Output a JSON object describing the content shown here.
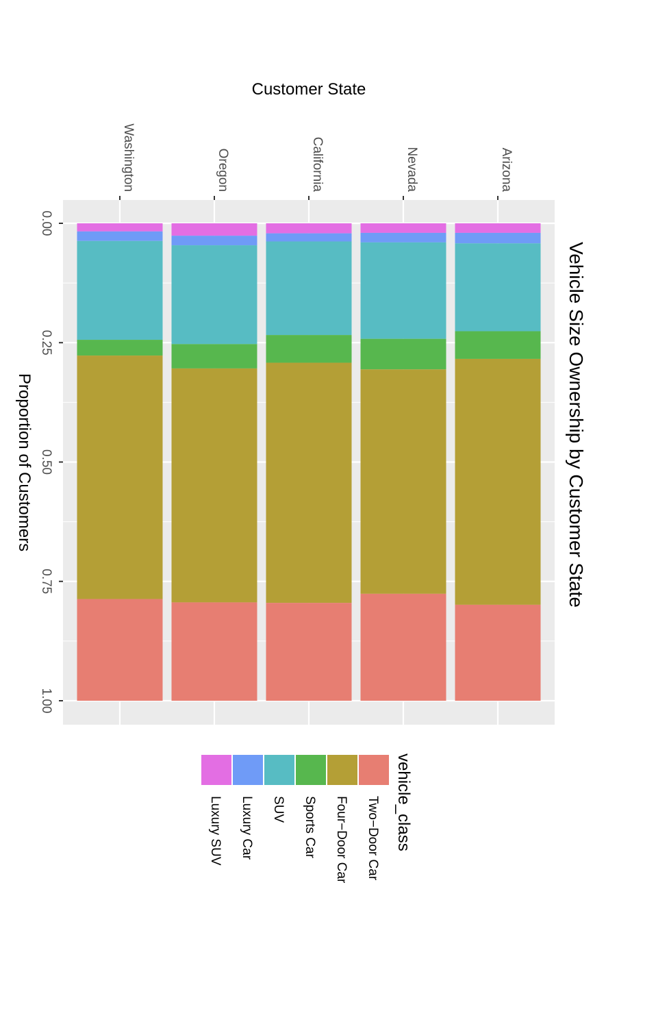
{
  "chart_data": {
    "type": "bar",
    "orientation": "stacked-proportion",
    "title": "Vehicle Size Ownership by Customer State",
    "xlabel": "Customer State",
    "ylabel": "Proportion of Customers",
    "categories": [
      "Washington",
      "Oregon",
      "California",
      "Nevada",
      "Arizona"
    ],
    "ylim": [
      0,
      1
    ],
    "yticks": [
      "0.00",
      "0.25",
      "0.50",
      "0.75",
      "1.00"
    ],
    "grid": true,
    "legend_position": "bottom",
    "legend_title": "vehicle_class",
    "series": [
      {
        "name": "Luxury SUV",
        "color": "#E36EE3",
        "values": [
          0.017,
          0.026,
          0.021,
          0.02,
          0.02
        ]
      },
      {
        "name": "Luxury Car",
        "color": "#6F9BF7",
        "values": [
          0.02,
          0.02,
          0.017,
          0.02,
          0.022
        ]
      },
      {
        "name": "SUV",
        "color": "#57BCC3",
        "values": [
          0.207,
          0.207,
          0.196,
          0.202,
          0.184
        ]
      },
      {
        "name": "Sports Car",
        "color": "#57B74E",
        "values": [
          0.033,
          0.051,
          0.058,
          0.064,
          0.058
        ]
      },
      {
        "name": "Four-Door Car",
        "color": "#B49F36",
        "values": [
          0.51,
          0.49,
          0.503,
          0.47,
          0.515
        ]
      },
      {
        "name": "Two-Door Car",
        "color": "#E77E72",
        "values": [
          0.213,
          0.206,
          0.205,
          0.224,
          0.201
        ]
      }
    ],
    "legend_entries": [
      "Two−Door Car",
      "Four−Door Car",
      "Sports Car",
      "SUV",
      "Luxury Car",
      "Luxury SUV"
    ]
  }
}
